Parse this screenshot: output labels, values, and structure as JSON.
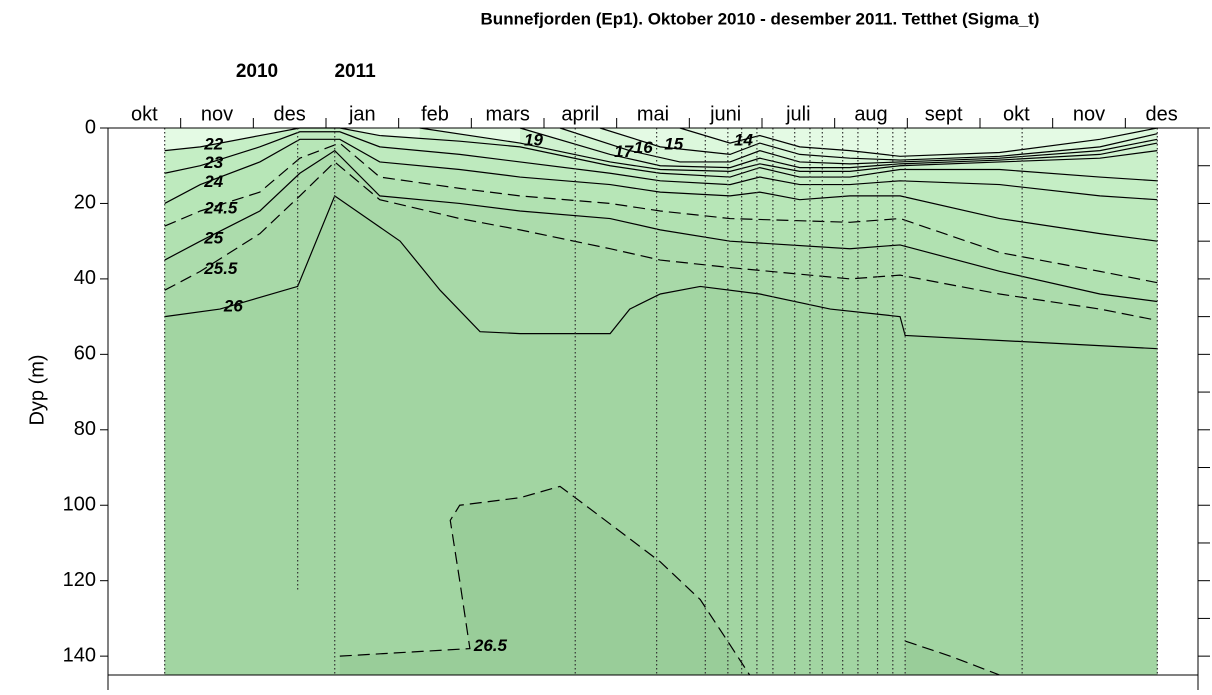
{
  "chart_data": {
    "type": "contour",
    "title": "Bunnefjorden (Ep1). Oktober 2010 - desember 2011. Tetthet (Sigma_t)",
    "years": [
      "2010",
      "2011"
    ],
    "categories": [
      "okt",
      "nov",
      "des",
      "jan",
      "feb",
      "mars",
      "april",
      "mai",
      "juni",
      "juli",
      "aug",
      "sept",
      "okt",
      "nov",
      "des"
    ],
    "xlim": [
      0,
      15
    ],
    "ylabel": "Dyp (m)",
    "ylim": [
      0,
      145
    ],
    "yreverse": true,
    "yticks": [
      0,
      20,
      40,
      60,
      80,
      100,
      120,
      140
    ],
    "yminor": [
      10,
      30,
      50,
      70,
      90,
      110,
      130
    ],
    "background_color": "#e4fae4",
    "stations": [
      {
        "x": 0.78,
        "depth": 145
      },
      {
        "x": 2.61,
        "depth": 123
      },
      {
        "x": 3.12,
        "depth": 145
      },
      {
        "x": 6.43,
        "depth": 145
      },
      {
        "x": 7.55,
        "depth": 145
      },
      {
        "x": 8.22,
        "depth": 145
      },
      {
        "x": 8.53,
        "depth": 145
      },
      {
        "x": 8.72,
        "depth": 145
      },
      {
        "x": 8.93,
        "depth": 145
      },
      {
        "x": 9.15,
        "depth": 145
      },
      {
        "x": 9.45,
        "depth": 145
      },
      {
        "x": 9.66,
        "depth": 145
      },
      {
        "x": 9.83,
        "depth": 145
      },
      {
        "x": 10.11,
        "depth": 145
      },
      {
        "x": 10.32,
        "depth": 145
      },
      {
        "x": 10.59,
        "depth": 145
      },
      {
        "x": 10.8,
        "depth": 145
      },
      {
        "x": 10.97,
        "depth": 145
      },
      {
        "x": 12.58,
        "depth": 145
      },
      {
        "x": 14.44,
        "depth": 145
      }
    ],
    "series": [
      {
        "name": "14",
        "color": "#dcf8dc",
        "dash": false,
        "x": [
          7.87,
          8.56,
          8.97,
          9.52,
          10.21,
          10.9,
          12.27,
          13.65,
          14.44
        ],
        "values": [
          0,
          4,
          2,
          5,
          6,
          7.5,
          6.5,
          3,
          0
        ]
      },
      {
        "name": "15",
        "color": "#d8f6d8",
        "dash": false,
        "x": [
          6.77,
          7.6,
          8.56,
          8.97,
          9.52,
          10.21,
          10.9,
          12.27,
          13.65,
          14.44
        ],
        "values": [
          0,
          5,
          7,
          4,
          7,
          8,
          8.5,
          7.5,
          5,
          1.5
        ]
      },
      {
        "name": "16",
        "color": "#d3f4d3",
        "dash": false,
        "x": [
          6.22,
          7.18,
          7.87,
          8.56,
          8.97,
          9.52,
          10.21,
          10.9,
          12.27,
          13.65,
          14.44
        ],
        "values": [
          0,
          6,
          9,
          9,
          6,
          9,
          9.5,
          9,
          8,
          6,
          3
        ]
      },
      {
        "name": "17",
        "color": "#cff2cf",
        "dash": false,
        "x": [
          5.67,
          6.91,
          7.6,
          8.56,
          8.97,
          9.52,
          10.21,
          10.9,
          12.27,
          13.65,
          14.44
        ],
        "values": [
          0,
          7,
          10,
          10.5,
          8,
          10.5,
          10.5,
          9.5,
          8.5,
          7,
          4
        ]
      },
      {
        "name": "19",
        "color": "#caf0ca",
        "dash": false,
        "x": [
          4.29,
          5.67,
          6.91,
          7.6,
          8.56,
          8.97,
          9.52,
          10.21,
          10.9,
          12.27,
          13.65,
          14.44
        ],
        "values": [
          0,
          4,
          9,
          11,
          11.5,
          9.5,
          11.5,
          11.5,
          10,
          9,
          8,
          6
        ]
      },
      {
        "name": "22",
        "color": "#c5eec5",
        "dash": false,
        "x": [
          0.78,
          1.27,
          2.09,
          2.64,
          3.19,
          3.74,
          4.84,
          5.67,
          6.91,
          7.6,
          8.56,
          8.97,
          9.52,
          10.21,
          10.9,
          12.27,
          13.65,
          14.44
        ],
        "values": [
          6,
          5,
          2,
          0,
          0,
          2,
          3.5,
          5,
          10,
          12,
          13,
          10.5,
          13,
          13,
          11,
          11,
          13,
          14
        ]
      },
      {
        "name": "23",
        "color": "#beeabe",
        "dash": false,
        "x": [
          0.78,
          1.27,
          2.09,
          2.64,
          3.19,
          3.74,
          4.84,
          5.67,
          6.91,
          7.6,
          8.56,
          8.97,
          9.52,
          10.21,
          10.9,
          12.27,
          13.65,
          14.44
        ],
        "values": [
          12,
          10,
          5,
          1,
          1,
          5,
          7,
          9,
          12,
          14,
          15,
          13,
          15,
          15,
          14,
          15,
          18,
          19
        ]
      },
      {
        "name": "24",
        "color": "#b7e6b7",
        "dash": false,
        "x": [
          0.78,
          1.27,
          2.09,
          2.64,
          3.19,
          3.74,
          4.84,
          5.67,
          6.91,
          7.6,
          8.56,
          8.97,
          9.52,
          10.21,
          10.9,
          12.27,
          13.65,
          14.44
        ],
        "values": [
          20,
          15,
          9,
          3,
          3,
          9,
          11,
          13,
          15,
          17,
          18,
          17,
          19,
          18,
          18,
          24,
          28,
          30
        ]
      },
      {
        "name": "24.5",
        "color": "#b1e1b1",
        "dash": true,
        "x": [
          0.78,
          1.27,
          2.09,
          2.64,
          3.19,
          3.74,
          4.84,
          5.67,
          6.91,
          7.6,
          8.56,
          10.21,
          10.9,
          12.27,
          13.65,
          14.44
        ],
        "values": [
          26,
          22,
          17,
          8,
          4,
          13,
          16,
          18,
          20,
          22,
          24,
          25,
          24,
          33,
          38,
          41
        ]
      },
      {
        "name": "25",
        "color": "#acdcac",
        "dash": false,
        "x": [
          0.78,
          1.27,
          2.09,
          2.64,
          3.12,
          3.74,
          4.84,
          5.67,
          6.91,
          7.6,
          8.56,
          10.21,
          10.9,
          12.27,
          13.65,
          14.44
        ],
        "values": [
          35,
          30,
          22,
          12,
          6,
          18,
          20,
          22,
          24,
          27,
          30,
          32,
          31,
          38,
          44,
          46
        ]
      },
      {
        "name": "25.5",
        "color": "#a8d9a8",
        "dash": true,
        "x": [
          0.78,
          1.27,
          2.09,
          2.64,
          3.12,
          3.74,
          4.84,
          5.67,
          6.91,
          7.6,
          8.56,
          10.21,
          10.9,
          12.27,
          13.65,
          14.44
        ],
        "values": [
          43,
          38,
          28,
          18,
          9,
          19,
          24,
          27,
          32,
          35,
          37,
          40,
          39,
          44,
          48,
          51
        ]
      },
      {
        "name": "26",
        "color": "#a2d5a2",
        "dash": false,
        "x": [
          0.78,
          1.54,
          2.61,
          3.12,
          4.02,
          4.57,
          5.12,
          5.67,
          6.91,
          7.18,
          7.6,
          8.15,
          8.97,
          9.94,
          10.9,
          10.97,
          14.44
        ],
        "values": [
          50,
          48,
          42,
          18,
          30,
          43,
          54,
          54.5,
          54.5,
          48,
          44,
          42,
          44,
          48,
          50,
          55,
          58.5
        ]
      },
      {
        "name": "26.5",
        "color": "#99cd99",
        "dash": true,
        "x": [
          3.19,
          4.98,
          4.84,
          4.71,
          4.84,
          5.67,
          6.22,
          6.5,
          7.05,
          7.6,
          8.15,
          8.56,
          8.83,
          null,
          10.97,
          11.59,
          12.27
        ],
        "values": [
          140,
          138,
          120,
          104,
          100,
          98,
          95,
          99,
          107,
          115,
          125,
          137,
          145,
          null,
          136,
          140,
          145
        ]
      }
    ]
  }
}
